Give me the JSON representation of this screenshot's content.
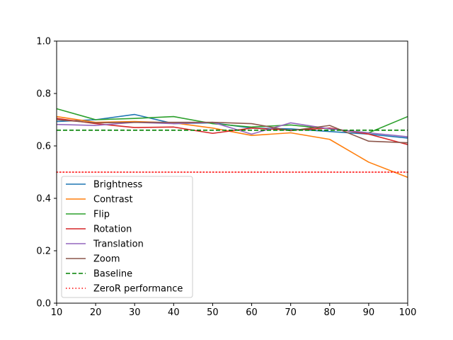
{
  "chart_data": {
    "type": "line",
    "title": "",
    "xlabel": "",
    "ylabel": "",
    "xlim": [
      10,
      100
    ],
    "ylim": [
      0.0,
      1.0
    ],
    "x": [
      10,
      20,
      30,
      40,
      50,
      60,
      70,
      80,
      90,
      100
    ],
    "xticks": [
      "10",
      "20",
      "30",
      "40",
      "50",
      "60",
      "70",
      "80",
      "90",
      "100"
    ],
    "yticks": [
      "0.0",
      "0.2",
      "0.4",
      "0.6",
      "0.8",
      "1.0"
    ],
    "grid": false,
    "legend_position": "lower-left",
    "series": [
      {
        "name": "Brightness",
        "color": "#1f77b4",
        "style": "solid",
        "values": [
          0.693,
          0.7,
          0.72,
          0.685,
          0.688,
          0.668,
          0.665,
          0.655,
          0.645,
          0.63
        ]
      },
      {
        "name": "Contrast",
        "color": "#ff7f0e",
        "style": "solid",
        "values": [
          0.712,
          0.69,
          0.693,
          0.688,
          0.668,
          0.64,
          0.65,
          0.625,
          0.538,
          0.48
        ]
      },
      {
        "name": "Flip",
        "color": "#2ca02c",
        "style": "solid",
        "values": [
          0.742,
          0.7,
          0.705,
          0.712,
          0.685,
          0.672,
          0.68,
          0.665,
          0.65,
          0.712
        ]
      },
      {
        "name": "Rotation",
        "color": "#d62728",
        "style": "solid",
        "values": [
          0.705,
          0.685,
          0.67,
          0.672,
          0.648,
          0.668,
          0.66,
          0.668,
          0.645,
          0.605
        ]
      },
      {
        "name": "Translation",
        "color": "#9467bd",
        "style": "solid",
        "values": [
          0.682,
          0.678,
          0.69,
          0.685,
          0.69,
          0.645,
          0.688,
          0.665,
          0.65,
          0.635
        ]
      },
      {
        "name": "Zoom",
        "color": "#8c564b",
        "style": "solid",
        "values": [
          0.7,
          0.688,
          0.69,
          0.69,
          0.69,
          0.685,
          0.658,
          0.678,
          0.618,
          0.612
        ]
      },
      {
        "name": "Baseline",
        "color": "#008000",
        "style": "dashed",
        "values": [
          0.66,
          0.66,
          0.66,
          0.66,
          0.66,
          0.66,
          0.66,
          0.66,
          0.66,
          0.66
        ]
      },
      {
        "name": "ZeroR performance",
        "color": "#ff0000",
        "style": "dotted",
        "values": [
          0.5,
          0.5,
          0.5,
          0.5,
          0.5,
          0.5,
          0.5,
          0.5,
          0.5,
          0.5
        ]
      }
    ]
  }
}
